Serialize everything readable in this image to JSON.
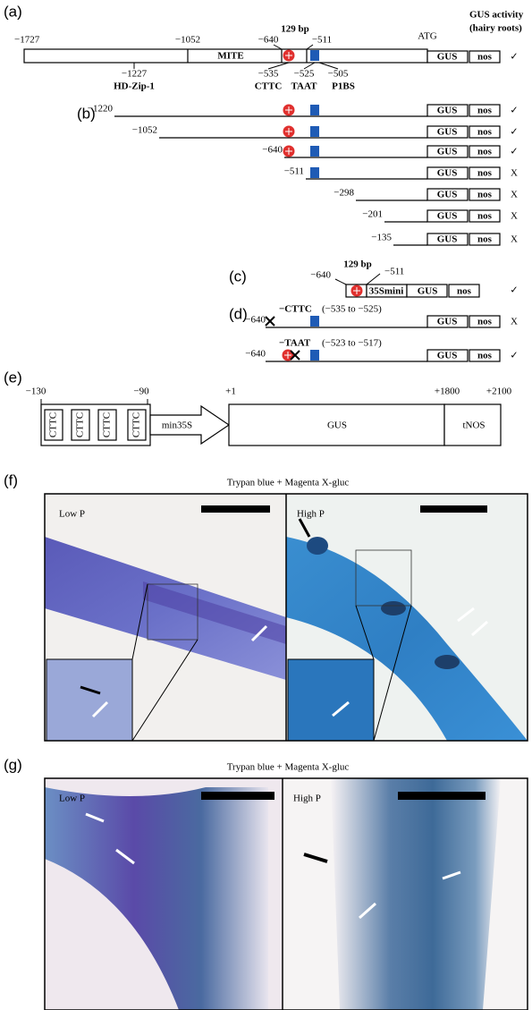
{
  "panel_a": {
    "label": "(a)",
    "header_line1": "GUS activity",
    "header_line2": "(hairy roots)",
    "positions": [
      "−1727",
      "−1052",
      "−640",
      "−511"
    ],
    "bracket_label": "129 bp",
    "atg": "ATG",
    "mite": "MITE",
    "features": [
      {
        "pos": "−1227",
        "name": "HD-Zip-1"
      },
      {
        "pos": "−535",
        "name": "CTTC"
      },
      {
        "pos": "−525",
        "name": "TAAT"
      },
      {
        "pos": "−505",
        "name": "P1BS"
      }
    ],
    "gus": "GUS",
    "nos": "nos",
    "result": "✓"
  },
  "panel_b": {
    "label": "(b)",
    "constructs": [
      {
        "start": "−1220",
        "gus": "GUS",
        "nos": "nos",
        "result": "✓"
      },
      {
        "start": "−1052",
        "gus": "GUS",
        "nos": "nos",
        "result": "✓"
      },
      {
        "start": "−640",
        "gus": "GUS",
        "nos": "nos",
        "result": "✓"
      },
      {
        "start": "−511",
        "gus": "GUS",
        "nos": "nos",
        "result": "X"
      },
      {
        "start": "−298",
        "gus": "GUS",
        "nos": "nos",
        "result": "X"
      },
      {
        "start": "−201",
        "gus": "GUS",
        "nos": "nos",
        "result": "X"
      },
      {
        "start": "−135",
        "gus": "GUS",
        "nos": "nos",
        "result": "X"
      }
    ]
  },
  "panel_c": {
    "label": "(c)",
    "start": "−640",
    "bracket_label": "129 bp",
    "end": "−511",
    "promoter": "35Smini",
    "gus": "GUS",
    "nos": "nos",
    "result": "✓"
  },
  "panel_d": {
    "label": "(d)",
    "constructs": [
      {
        "start": "−640",
        "mutation": "−CTTC",
        "range": "(−535 to −525)",
        "gus": "GUS",
        "nos": "nos",
        "result": "X"
      },
      {
        "start": "−640",
        "mutation": "−TAAT",
        "range": "(−523 to −517)",
        "gus": "GUS",
        "nos": "nos",
        "result": "✓"
      }
    ]
  },
  "panel_e": {
    "label": "(e)",
    "positions": [
      "−130",
      "−90",
      "+1",
      "+1800",
      "+2100"
    ],
    "elements": [
      "CTTC",
      "CTTC",
      "CTTC",
      "CTTC"
    ],
    "promoter": "min35S",
    "gene": "GUS",
    "terminator": "tNOS"
  },
  "panel_f": {
    "label": "(f)",
    "title": "Trypan blue + Magenta X-gluc",
    "left": "Low P",
    "right": "High P"
  },
  "panel_g": {
    "label": "(g)",
    "title": "Trypan blue + Magenta X-gluc",
    "left": "Low P",
    "right": "High P"
  }
}
